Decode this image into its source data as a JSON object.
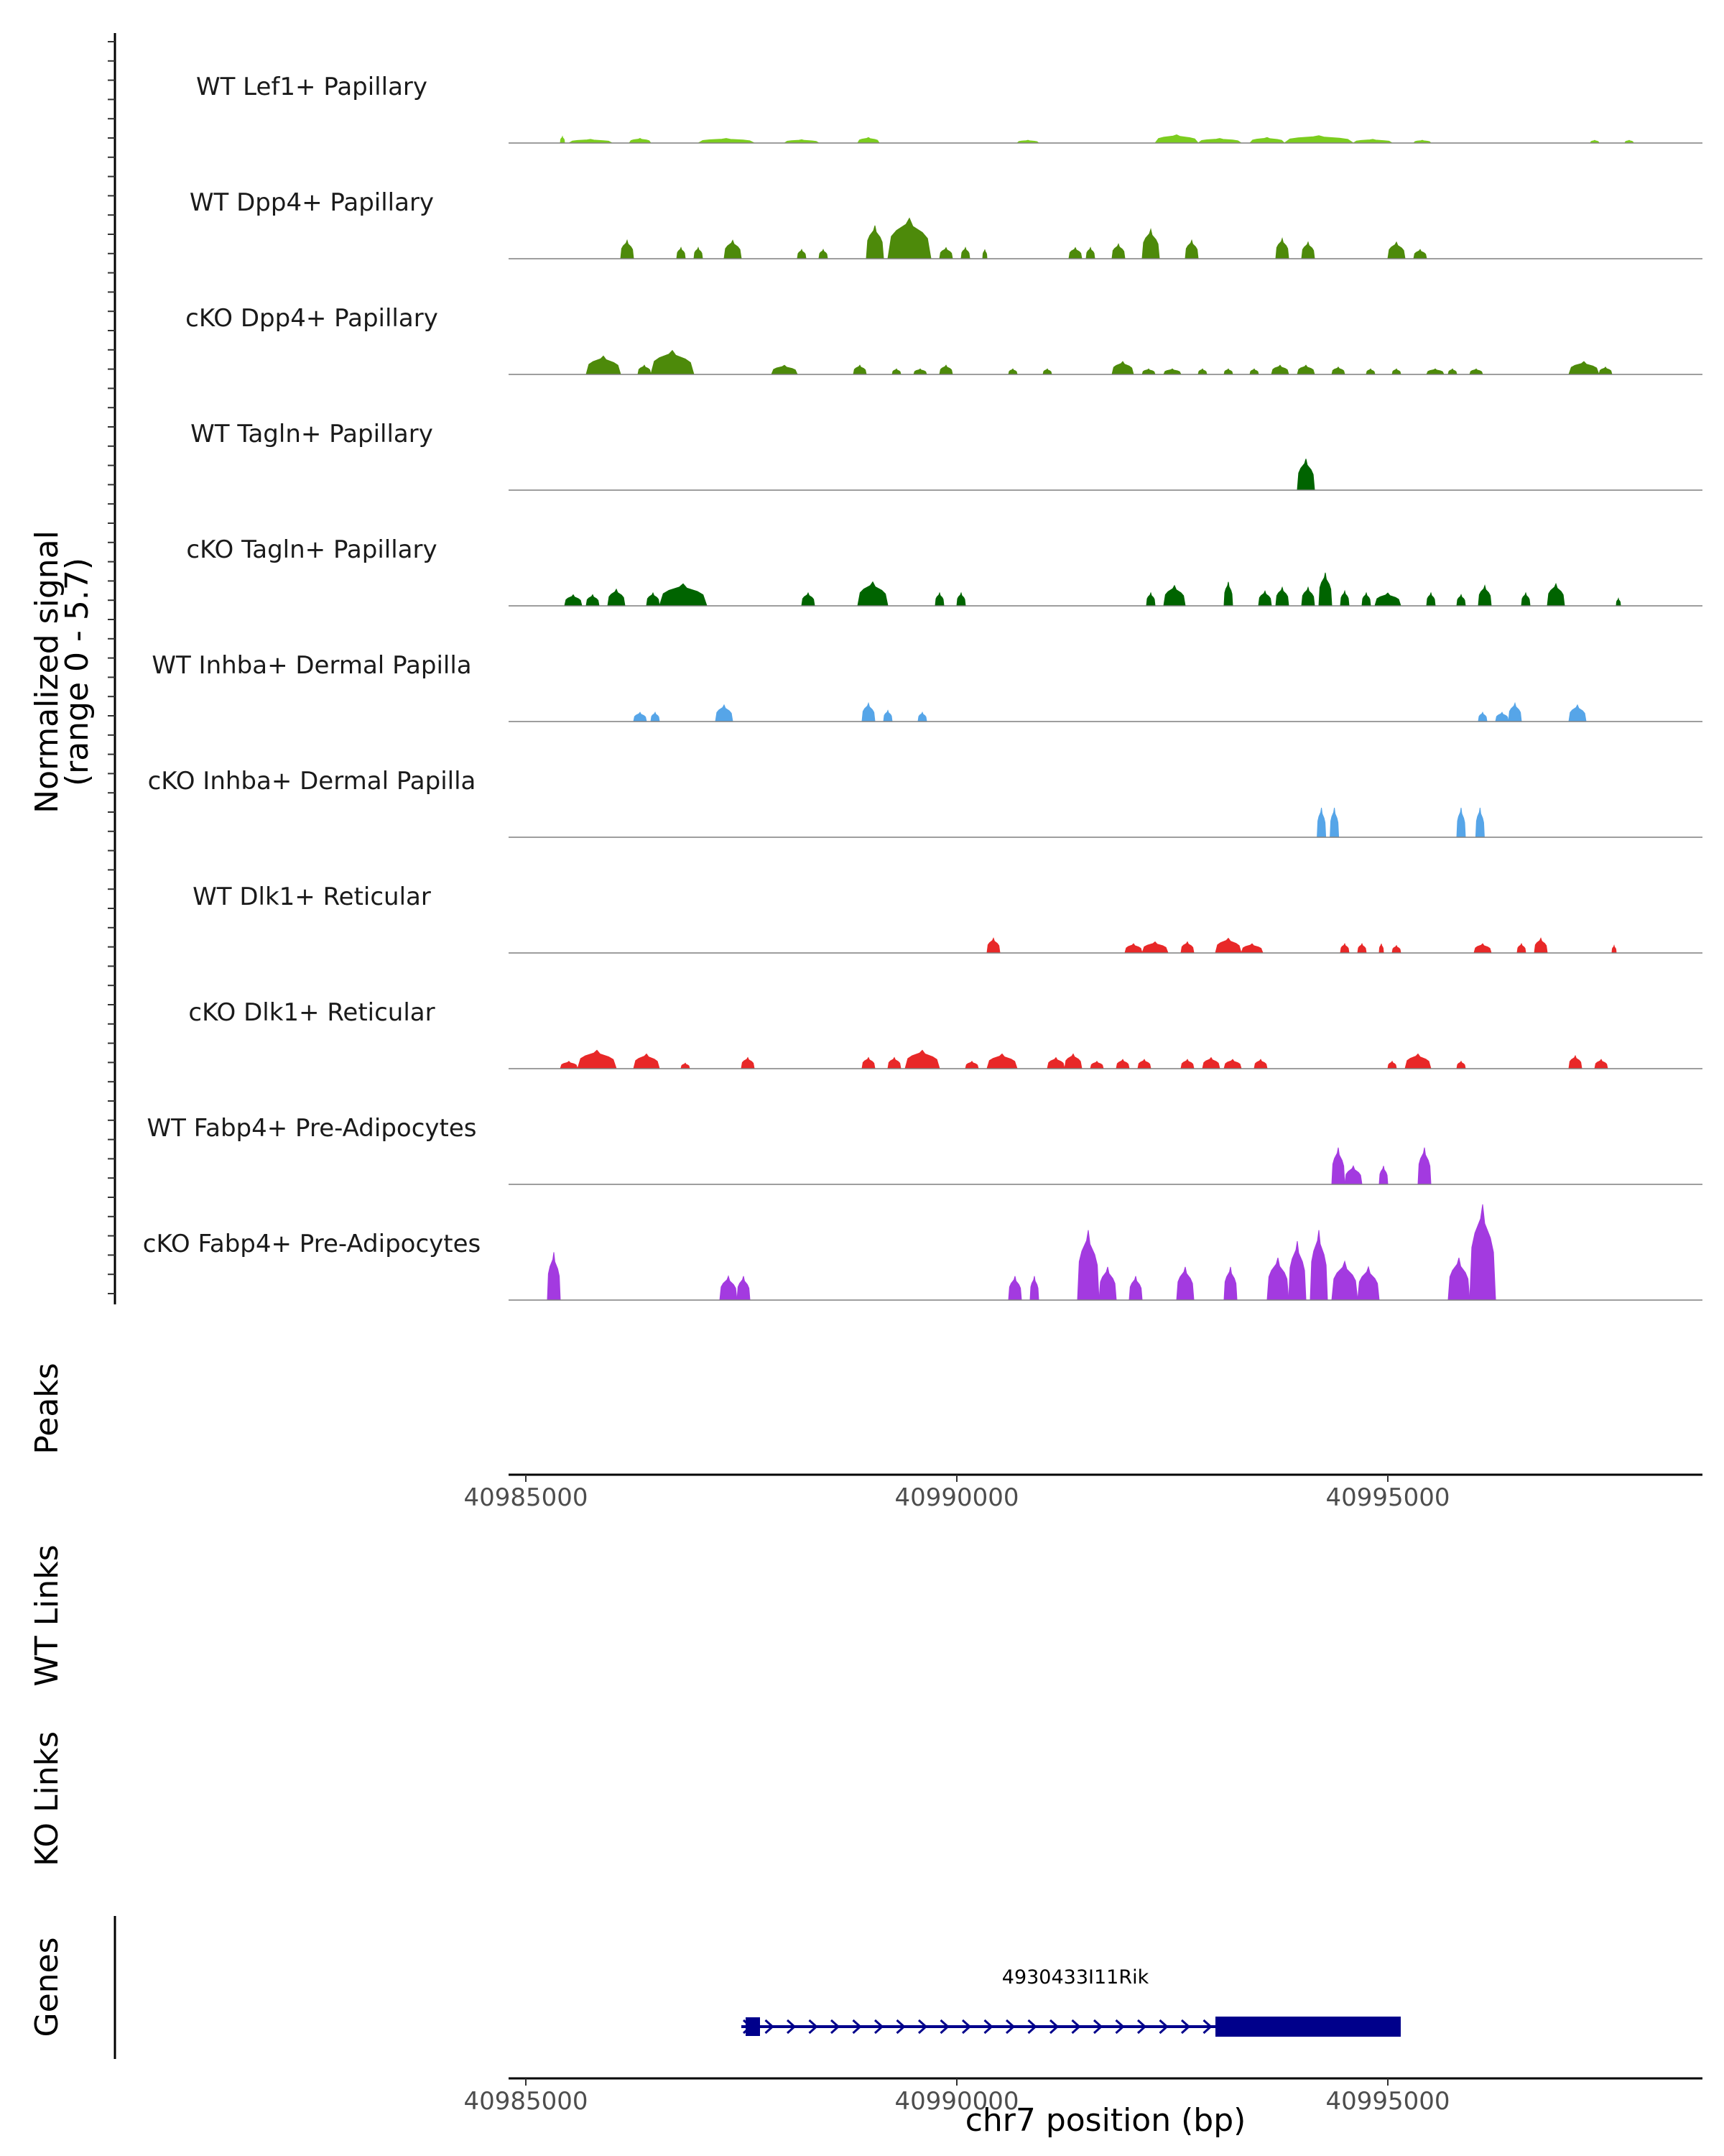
{
  "chart_data": {
    "type": "area",
    "title": "",
    "ylabel_line1": "Normalized signal",
    "ylabel_line2": "(range 0 - 5.7)",
    "ylim": [
      0,
      5.7
    ],
    "xlim": [
      40984800,
      40998650
    ],
    "xlabel": "chr7 position (bp)",
    "xticks": [
      40985000,
      40990000,
      40995000
    ],
    "xtick_labels": [
      "40985000",
      "40990000",
      "40995000"
    ],
    "side_labels": {
      "peaks": "Peaks",
      "wt_links": "WT Links",
      "ko_links": "KO Links",
      "genes": "Genes"
    },
    "tracks": [
      {
        "name": "WT Lef1+ Papillary",
        "color": "#7ccd1f",
        "peaks": [
          [
            40985400,
            40985450,
            0.35
          ],
          [
            40985500,
            40986000,
            0.2
          ],
          [
            40986200,
            40986450,
            0.25
          ],
          [
            40987000,
            40987650,
            0.25
          ],
          [
            40988000,
            40988400,
            0.18
          ],
          [
            40988850,
            40989100,
            0.3
          ],
          [
            40990700,
            40990950,
            0.15
          ],
          [
            40992300,
            40992800,
            0.45
          ],
          [
            40992800,
            40993300,
            0.25
          ],
          [
            40993400,
            40993800,
            0.3
          ],
          [
            40993800,
            40994600,
            0.4
          ],
          [
            40994600,
            40995050,
            0.2
          ],
          [
            40995300,
            40995500,
            0.15
          ],
          [
            40997350,
            40997450,
            0.15
          ],
          [
            40997750,
            40997850,
            0.15
          ]
        ]
      },
      {
        "name": "WT Dpp4+ Papillary",
        "color": "#4d8a0a",
        "peaks": [
          [
            40986100,
            40986250,
            1.0
          ],
          [
            40986750,
            40986850,
            0.6
          ],
          [
            40986950,
            40987050,
            0.6
          ],
          [
            40987300,
            40987500,
            1.0
          ],
          [
            40988150,
            40988250,
            0.5
          ],
          [
            40988400,
            40988500,
            0.5
          ],
          [
            40988950,
            40989150,
            1.8
          ],
          [
            40989200,
            40989700,
            2.2
          ],
          [
            40989800,
            40989950,
            0.6
          ],
          [
            40990050,
            40990150,
            0.6
          ],
          [
            40990300,
            40990350,
            0.5
          ],
          [
            40991300,
            40991450,
            0.6
          ],
          [
            40991500,
            40991600,
            0.6
          ],
          [
            40991800,
            40991950,
            0.8
          ],
          [
            40992150,
            40992350,
            1.6
          ],
          [
            40992650,
            40992800,
            1.0
          ],
          [
            40993700,
            40993850,
            1.1
          ],
          [
            40994000,
            40994150,
            0.9
          ],
          [
            40995000,
            40995200,
            0.9
          ],
          [
            40995300,
            40995450,
            0.5
          ]
        ]
      },
      {
        "name": "cKO Dpp4+ Papillary",
        "color": "#4d8a0a",
        "peaks": [
          [
            40985700,
            40986100,
            1.0
          ],
          [
            40986300,
            40986450,
            0.5
          ],
          [
            40986450,
            40986950,
            1.3
          ],
          [
            40987850,
            40988150,
            0.5
          ],
          [
            40988800,
            40988950,
            0.5
          ],
          [
            40989250,
            40989350,
            0.3
          ],
          [
            40989500,
            40989650,
            0.3
          ],
          [
            40989800,
            40989950,
            0.5
          ],
          [
            40990600,
            40990700,
            0.3
          ],
          [
            40991000,
            40991100,
            0.3
          ],
          [
            40991800,
            40992050,
            0.7
          ],
          [
            40992150,
            40992300,
            0.3
          ],
          [
            40992400,
            40992600,
            0.3
          ],
          [
            40992800,
            40992900,
            0.3
          ],
          [
            40993100,
            40993200,
            0.3
          ],
          [
            40993400,
            40993500,
            0.3
          ],
          [
            40993650,
            40993850,
            0.5
          ],
          [
            40993950,
            40994150,
            0.5
          ],
          [
            40994350,
            40994500,
            0.4
          ],
          [
            40994750,
            40994850,
            0.3
          ],
          [
            40995050,
            40995150,
            0.3
          ],
          [
            40995450,
            40995650,
            0.3
          ],
          [
            40995700,
            40995800,
            0.3
          ],
          [
            40995950,
            40996100,
            0.3
          ],
          [
            40997100,
            40997450,
            0.7
          ],
          [
            40997450,
            40997600,
            0.4
          ]
        ]
      },
      {
        "name": "WT Tagln+ Papillary",
        "color": "#006400",
        "peaks": [
          [
            40993950,
            40994150,
            1.7
          ]
        ]
      },
      {
        "name": "cKO Tagln+ Papillary",
        "color": "#006400",
        "peaks": [
          [
            40985450,
            40985650,
            0.6
          ],
          [
            40985700,
            40985850,
            0.6
          ],
          [
            40985950,
            40986150,
            0.9
          ],
          [
            40986400,
            40986550,
            0.7
          ],
          [
            40986550,
            40987100,
            1.2
          ],
          [
            40988200,
            40988350,
            0.7
          ],
          [
            40988850,
            40989200,
            1.3
          ],
          [
            40989750,
            40989850,
            0.7
          ],
          [
            40990000,
            40990100,
            0.7
          ],
          [
            40992200,
            40992300,
            0.7
          ],
          [
            40992400,
            40992650,
            1.1
          ],
          [
            40993100,
            40993200,
            1.3
          ],
          [
            40993500,
            40993650,
            0.8
          ],
          [
            40993700,
            40993850,
            1.0
          ],
          [
            40994000,
            40994150,
            1.0
          ],
          [
            40994200,
            40994350,
            1.8
          ],
          [
            40994450,
            40994550,
            0.8
          ],
          [
            40994700,
            40994800,
            0.7
          ],
          [
            40994850,
            40995150,
            0.7
          ],
          [
            40995450,
            40995550,
            0.7
          ],
          [
            40995800,
            40995900,
            0.6
          ],
          [
            40996050,
            40996200,
            1.1
          ],
          [
            40996550,
            40996650,
            0.7
          ],
          [
            40996850,
            40997050,
            1.2
          ],
          [
            40997650,
            40997700,
            0.4
          ]
        ]
      },
      {
        "name": "WT Inhba+ Dermal Papilla",
        "color": "#56a5e8",
        "peaks": [
          [
            40986250,
            40986400,
            0.5
          ],
          [
            40986450,
            40986550,
            0.5
          ],
          [
            40987200,
            40987400,
            0.9
          ],
          [
            40988900,
            40989050,
            1.0
          ],
          [
            40989150,
            40989250,
            0.6
          ],
          [
            40989550,
            40989650,
            0.5
          ],
          [
            40996050,
            40996150,
            0.5
          ],
          [
            40996250,
            40996400,
            0.5
          ],
          [
            40996400,
            40996550,
            1.0
          ],
          [
            40997100,
            40997300,
            0.9
          ]
        ]
      },
      {
        "name": "cKO Inhba+ Dermal Papilla",
        "color": "#56a5e8",
        "peaks": [
          [
            40994180,
            40994280,
            1.6
          ],
          [
            40994330,
            40994430,
            1.6
          ],
          [
            40995800,
            40995900,
            1.6
          ],
          [
            40996020,
            40996120,
            1.6
          ]
        ]
      },
      {
        "name": "WT Dlk1+ Reticular",
        "color": "#e82828",
        "peaks": [
          [
            40990350,
            40990500,
            0.8
          ],
          [
            40991950,
            40992150,
            0.5
          ],
          [
            40992150,
            40992450,
            0.6
          ],
          [
            40992600,
            40992750,
            0.6
          ],
          [
            40993000,
            40993300,
            0.8
          ],
          [
            40993300,
            40993550,
            0.5
          ],
          [
            40994450,
            40994550,
            0.5
          ],
          [
            40994650,
            40994750,
            0.5
          ],
          [
            40994900,
            40994950,
            0.5
          ],
          [
            40995050,
            40995150,
            0.4
          ],
          [
            40996000,
            40996200,
            0.5
          ],
          [
            40996500,
            40996600,
            0.5
          ],
          [
            40996700,
            40996850,
            0.8
          ],
          [
            40997600,
            40997650,
            0.4
          ]
        ]
      },
      {
        "name": "cKO Dlk1+ Reticular",
        "color": "#e82828",
        "peaks": [
          [
            40985400,
            40985600,
            0.4
          ],
          [
            40985600,
            40986050,
            1.0
          ],
          [
            40986250,
            40986550,
            0.8
          ],
          [
            40986800,
            40986900,
            0.3
          ],
          [
            40987500,
            40987650,
            0.6
          ],
          [
            40988900,
            40989050,
            0.6
          ],
          [
            40989200,
            40989350,
            0.6
          ],
          [
            40989400,
            40989800,
            1.0
          ],
          [
            40990100,
            40990250,
            0.4
          ],
          [
            40990350,
            40990700,
            0.8
          ],
          [
            40991050,
            40991250,
            0.6
          ],
          [
            40991250,
            40991450,
            0.8
          ],
          [
            40991550,
            40991700,
            0.4
          ],
          [
            40991850,
            40992000,
            0.5
          ],
          [
            40992100,
            40992250,
            0.5
          ],
          [
            40992600,
            40992750,
            0.5
          ],
          [
            40992850,
            40993050,
            0.6
          ],
          [
            40993100,
            40993300,
            0.5
          ],
          [
            40993450,
            40993600,
            0.5
          ],
          [
            40995000,
            40995100,
            0.4
          ],
          [
            40995200,
            40995500,
            0.8
          ],
          [
            40995800,
            40995900,
            0.4
          ],
          [
            40997100,
            40997250,
            0.7
          ],
          [
            40997400,
            40997550,
            0.5
          ]
        ]
      },
      {
        "name": "WT Fabp4+ Pre-Adipocytes",
        "color": "#a33ae0",
        "peaks": [
          [
            40994350,
            40994500,
            2.0
          ],
          [
            40994500,
            40994700,
            1.0
          ],
          [
            40994900,
            40995000,
            1.0
          ],
          [
            40995350,
            40995500,
            2.0
          ]
        ]
      },
      {
        "name": "cKO Fabp4+ Pre-Adipocytes",
        "color": "#a33ae0",
        "peaks": [
          [
            40985250,
            40985400,
            2.6
          ],
          [
            40987250,
            40987450,
            1.3
          ],
          [
            40987450,
            40987600,
            1.3
          ],
          [
            40990600,
            40990750,
            1.3
          ],
          [
            40990850,
            40990950,
            1.3
          ],
          [
            40991400,
            40991650,
            3.8
          ],
          [
            40991650,
            40991850,
            1.8
          ],
          [
            40992000,
            40992150,
            1.3
          ],
          [
            40992550,
            40992750,
            1.8
          ],
          [
            40993100,
            40993250,
            1.8
          ],
          [
            40993600,
            40993850,
            2.3
          ],
          [
            40993850,
            40994050,
            3.2
          ],
          [
            40994100,
            40994300,
            3.8
          ],
          [
            40994350,
            40994650,
            2.1
          ],
          [
            40994650,
            40994900,
            1.8
          ],
          [
            40995700,
            40995950,
            2.3
          ],
          [
            40995950,
            40996250,
            5.2
          ],
          [
            40996000,
            40996250,
            2.1
          ]
        ]
      }
    ],
    "genes": [
      {
        "name": "4930433I11Rik",
        "start": 40987500,
        "end": 40995200,
        "thin_end": 40987700,
        "thick_start": 40993000,
        "thick_end": 40995150,
        "strand": "+"
      }
    ]
  }
}
